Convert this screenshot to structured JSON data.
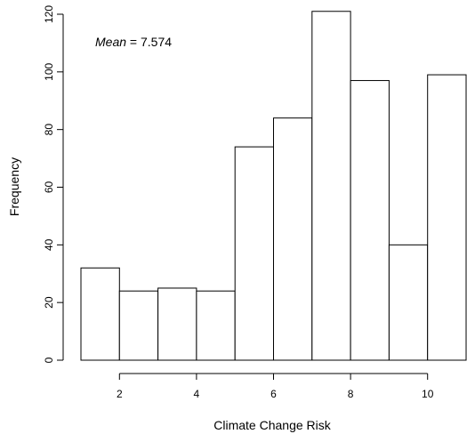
{
  "chart_data": {
    "type": "bar",
    "histogram": true,
    "xlabel": "Climate Change Risk",
    "ylabel": "Frequency",
    "annotation": {
      "label": "Mean",
      "separator": " = ",
      "value": "7.574"
    },
    "bins": [
      {
        "x0": 1,
        "x1": 2,
        "value": 32
      },
      {
        "x0": 2,
        "x1": 3,
        "value": 24
      },
      {
        "x0": 3,
        "x1": 4,
        "value": 25
      },
      {
        "x0": 4,
        "x1": 5,
        "value": 24
      },
      {
        "x0": 5,
        "x1": 6,
        "value": 74
      },
      {
        "x0": 6,
        "x1": 7,
        "value": 84
      },
      {
        "x0": 7,
        "x1": 8,
        "value": 121
      },
      {
        "x0": 8,
        "x1": 9,
        "value": 97
      },
      {
        "x0": 9,
        "x1": 10,
        "value": 40
      },
      {
        "x0": 10,
        "x1": 11,
        "value": 99
      }
    ],
    "xlim": [
      1,
      11
    ],
    "ylim": [
      0,
      120
    ],
    "xticks": [
      "2",
      "4",
      "6",
      "8",
      "10"
    ],
    "yticks": [
      "0",
      "20",
      "40",
      "60",
      "80",
      "100",
      "120"
    ],
    "grid": false,
    "legend": "none"
  }
}
